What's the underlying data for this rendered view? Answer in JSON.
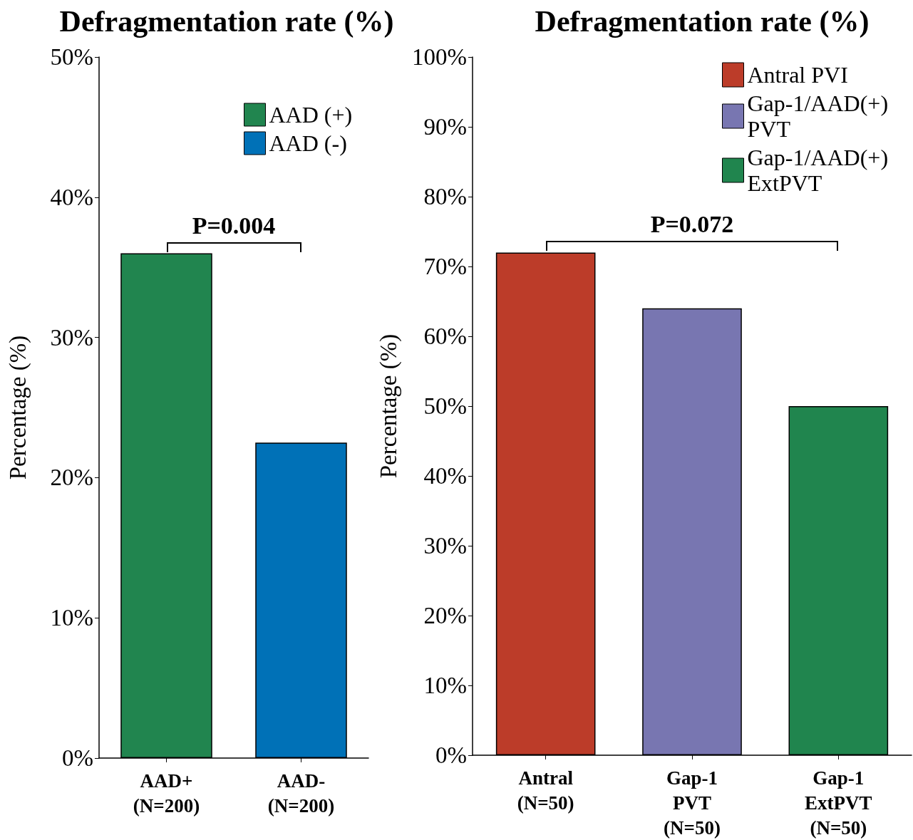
{
  "chart_data": [
    {
      "type": "bar",
      "title": "Defragmentation rate (%)",
      "ylabel": "Percentage (%)",
      "categories": [
        "AAD+\n(N=200)",
        "AAD-\n(N=200)"
      ],
      "series": [
        {
          "name": "AAD (+)",
          "color": "#21854f",
          "values": [
            36,
            null
          ]
        },
        {
          "name": "AAD (-)",
          "color": "#0071b7",
          "values": [
            null,
            22.5
          ]
        }
      ],
      "ylim": [
        0,
        50
      ],
      "yticks": [
        {
          "value": 0,
          "label": "0%"
        },
        {
          "value": 10,
          "label": "10%"
        },
        {
          "value": 20,
          "label": "20%"
        },
        {
          "value": 30,
          "label": "30%"
        },
        {
          "value": 40,
          "label": "40%"
        },
        {
          "value": 50,
          "label": "50%"
        }
      ],
      "grid": false,
      "legend": "top right",
      "annotations": [
        "P=0.004"
      ]
    },
    {
      "type": "bar",
      "title": "Defragmentation rate (%)",
      "ylabel": "Percentage (%)",
      "categories": [
        "Antral\n(N=50)",
        "Gap-1\nPVT\n(N=50)",
        "Gap-1\nExtPVT\n(N=50)"
      ],
      "series": [
        {
          "name": "Antral PVI",
          "color": "#bc3c29",
          "values": [
            72,
            null,
            null
          ]
        },
        {
          "name": "Gap-1/AAD(+)\nPVT",
          "color": "#7876b1",
          "values": [
            null,
            64,
            null
          ]
        },
        {
          "name": "Gap-1/AAD(+)\nExtPVT",
          "color": "#20854e",
          "values": [
            null,
            null,
            50
          ]
        }
      ],
      "ylim": [
        0,
        100
      ],
      "yticks": [
        {
          "value": 0,
          "label": "0%"
        },
        {
          "value": 10,
          "label": "10%"
        },
        {
          "value": 20,
          "label": "20%"
        },
        {
          "value": 30,
          "label": "30%"
        },
        {
          "value": 40,
          "label": "40%"
        },
        {
          "value": 50,
          "label": "50%"
        },
        {
          "value": 60,
          "label": "60%"
        },
        {
          "value": 70,
          "label": "70%"
        },
        {
          "value": 80,
          "label": "80%"
        },
        {
          "value": 90,
          "label": "90%"
        },
        {
          "value": 100,
          "label": "100%"
        }
      ],
      "grid": false,
      "legend": "top right",
      "annotations": [
        "P=0.072"
      ]
    }
  ]
}
